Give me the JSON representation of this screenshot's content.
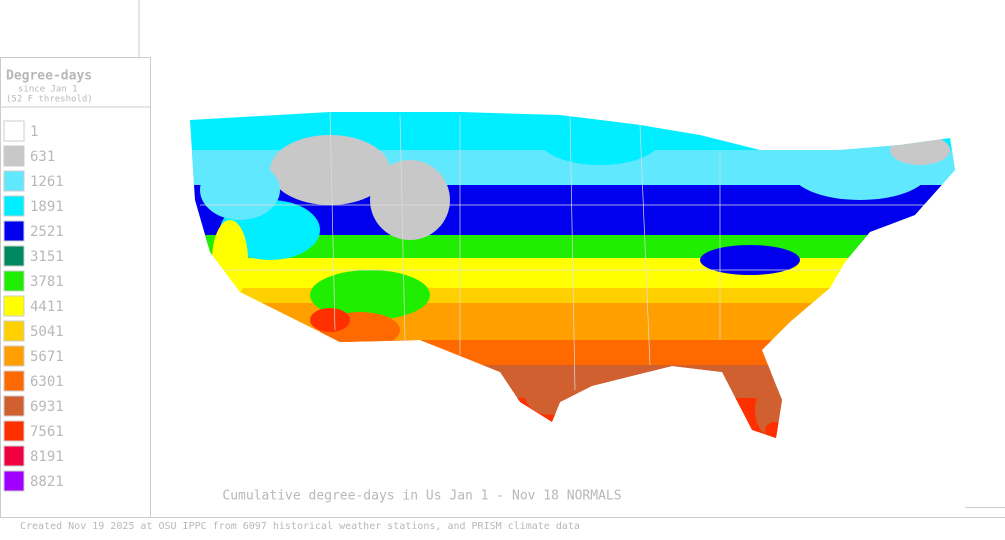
{
  "legend": {
    "title": "Degree-days",
    "subtitle": "since Jan 1",
    "note": "(52 F threshold)",
    "items": [
      {
        "value": 1,
        "color": "#ffffff"
      },
      {
        "value": 631,
        "color": "#c8c8c8"
      },
      {
        "value": 1261,
        "color": "#60e8ff"
      },
      {
        "value": 1891,
        "color": "#00eeff"
      },
      {
        "value": 2521,
        "color": "#0000ee"
      },
      {
        "value": 3151,
        "color": "#008860"
      },
      {
        "value": 3781,
        "color": "#20ee00"
      },
      {
        "value": 4411,
        "color": "#ffff00"
      },
      {
        "value": 5041,
        "color": "#ffd000"
      },
      {
        "value": 5671,
        "color": "#ffa000"
      },
      {
        "value": 6301,
        "color": "#ff6a00"
      },
      {
        "value": 6931,
        "color": "#d06030"
      },
      {
        "value": 7561,
        "color": "#ff3000"
      },
      {
        "value": 8191,
        "color": "#f00040"
      },
      {
        "value": 8821,
        "color": "#a000ff"
      }
    ]
  },
  "caption": "Cumulative degree-days in Us  Jan 1 - Nov 18 NORMALS",
  "footer": "Created Nov 19 2025 at OSU IPPC from 6097 historical weather stations, and PRISM climate data"
}
